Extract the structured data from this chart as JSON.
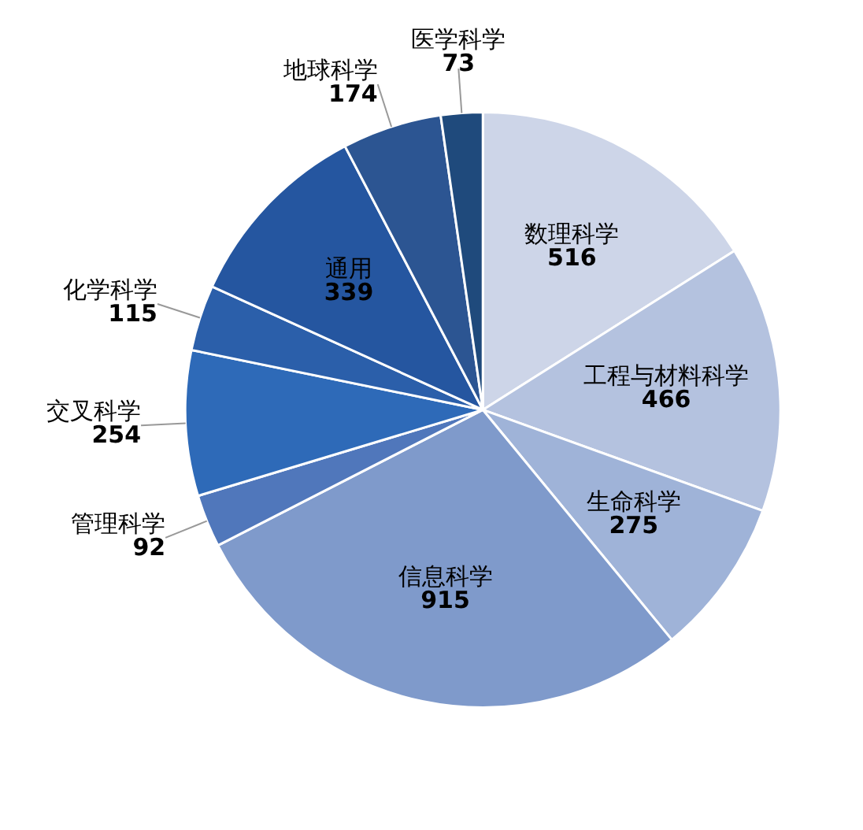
{
  "chart_data": {
    "type": "pie",
    "categories": [
      "数理科学",
      "工程与材料科学",
      "生命科学",
      "信息科学",
      "管理科学",
      "交叉科学",
      "化学科学",
      "通用",
      "地球科学",
      "医学科学"
    ],
    "values": [
      516,
      466,
      275,
      915,
      92,
      254,
      115,
      339,
      174,
      73
    ],
    "colors": [
      "#cdd5e8",
      "#b4c2df",
      "#9fb3d8",
      "#7f9acb",
      "#5077bb",
      "#2e6ab8",
      "#2b5faa",
      "#2556a0",
      "#2c5592",
      "#1f4a7c"
    ],
    "data_labels": true
  }
}
